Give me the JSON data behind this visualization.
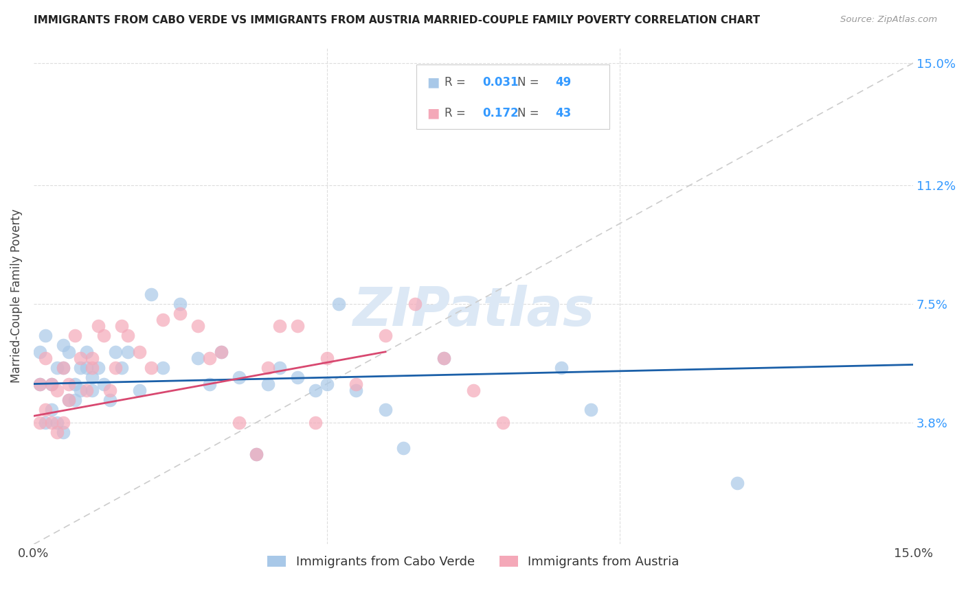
{
  "title": "IMMIGRANTS FROM CABO VERDE VS IMMIGRANTS FROM AUSTRIA MARRIED-COUPLE FAMILY POVERTY CORRELATION CHART",
  "source": "Source: ZipAtlas.com",
  "ylabel": "Married-Couple Family Poverty",
  "xlim": [
    0,
    0.15
  ],
  "ylim": [
    0,
    0.15
  ],
  "y_tick_labels": [
    "3.8%",
    "7.5%",
    "11.2%",
    "15.0%"
  ],
  "y_tick_values": [
    0.038,
    0.075,
    0.112,
    0.15
  ],
  "legend_label1": "Immigrants from Cabo Verde",
  "legend_label2": "Immigrants from Austria",
  "color_blue": "#a8c8e8",
  "color_pink": "#f4a8b8",
  "color_blue_line": "#1a5fa8",
  "color_pink_line": "#d84870",
  "color_diag_line": "#cccccc",
  "cabo_verde_x": [
    0.001,
    0.001,
    0.002,
    0.002,
    0.003,
    0.003,
    0.004,
    0.004,
    0.005,
    0.005,
    0.005,
    0.006,
    0.006,
    0.007,
    0.007,
    0.008,
    0.008,
    0.009,
    0.009,
    0.01,
    0.01,
    0.011,
    0.012,
    0.013,
    0.014,
    0.015,
    0.016,
    0.018,
    0.02,
    0.022,
    0.025,
    0.028,
    0.03,
    0.032,
    0.035,
    0.038,
    0.04,
    0.042,
    0.045,
    0.048,
    0.05,
    0.052,
    0.055,
    0.06,
    0.063,
    0.07,
    0.09,
    0.095,
    0.12
  ],
  "cabo_verde_y": [
    0.06,
    0.05,
    0.065,
    0.038,
    0.05,
    0.042,
    0.038,
    0.055,
    0.055,
    0.035,
    0.062,
    0.045,
    0.06,
    0.05,
    0.045,
    0.055,
    0.048,
    0.06,
    0.055,
    0.052,
    0.048,
    0.055,
    0.05,
    0.045,
    0.06,
    0.055,
    0.06,
    0.048,
    0.078,
    0.055,
    0.075,
    0.058,
    0.05,
    0.06,
    0.052,
    0.028,
    0.05,
    0.055,
    0.052,
    0.048,
    0.05,
    0.075,
    0.048,
    0.042,
    0.03,
    0.058,
    0.055,
    0.042,
    0.019
  ],
  "austria_x": [
    0.001,
    0.001,
    0.002,
    0.002,
    0.003,
    0.003,
    0.004,
    0.004,
    0.005,
    0.005,
    0.006,
    0.006,
    0.007,
    0.008,
    0.009,
    0.01,
    0.01,
    0.011,
    0.012,
    0.013,
    0.014,
    0.015,
    0.016,
    0.018,
    0.02,
    0.022,
    0.025,
    0.028,
    0.03,
    0.032,
    0.035,
    0.038,
    0.04,
    0.042,
    0.045,
    0.048,
    0.05,
    0.055,
    0.06,
    0.065,
    0.07,
    0.075,
    0.08
  ],
  "austria_y": [
    0.038,
    0.05,
    0.042,
    0.058,
    0.038,
    0.05,
    0.035,
    0.048,
    0.038,
    0.055,
    0.045,
    0.05,
    0.065,
    0.058,
    0.048,
    0.055,
    0.058,
    0.068,
    0.065,
    0.048,
    0.055,
    0.068,
    0.065,
    0.06,
    0.055,
    0.07,
    0.072,
    0.068,
    0.058,
    0.06,
    0.038,
    0.028,
    0.055,
    0.068,
    0.068,
    0.038,
    0.058,
    0.05,
    0.065,
    0.075,
    0.058,
    0.048,
    0.038
  ],
  "blue_trend_x0": 0.0,
  "blue_trend_y0": 0.05,
  "blue_trend_x1": 0.15,
  "blue_trend_y1": 0.056,
  "pink_trend_x0": 0.0,
  "pink_trend_y0": 0.04,
  "pink_trend_x1": 0.06,
  "pink_trend_y1": 0.06
}
